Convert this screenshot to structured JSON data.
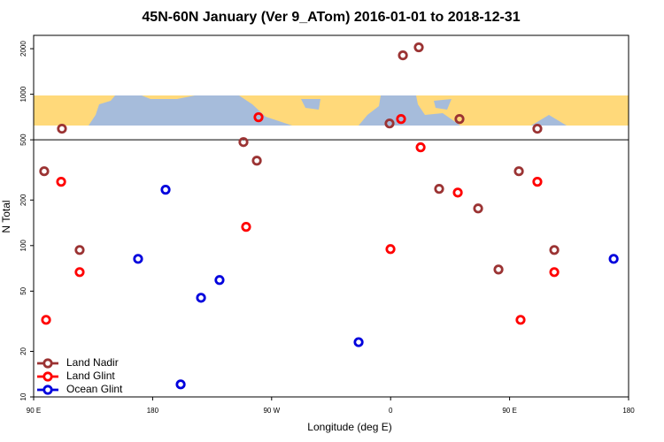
{
  "chart_data": {
    "type": "scatter",
    "title": "45N-60N January (Ver 9_ATom)   2016-01-01 to 2018-12-31",
    "x_label": "Longitude (deg E)",
    "y_label": "N Total",
    "xlim": [
      90,
      540
    ],
    "ylim": [
      10,
      2450
    ],
    "log_y": true,
    "hline": 500,
    "legend": "lower left",
    "xticks": [
      {
        "value": 90,
        "label": "90 E"
      },
      180,
      {
        "value": 270,
        "label": "90 W"
      },
      {
        "value": 360,
        "label": "0"
      },
      {
        "value": 450,
        "label": "90 E"
      },
      {
        "value": 540,
        "label": "180"
      }
    ],
    "yticks": [
      10,
      20,
      50,
      100,
      200,
      500,
      1000,
      2000
    ],
    "series": [
      {
        "name": "Land Nadir",
        "color": "#9b3333",
        "x": [
          98.0,
          111.4,
          124.8,
          248.7,
          258.8,
          359.2,
          369.3,
          381.3,
          396.7,
          412.1,
          426.2,
          441.6,
          457.0,
          471.0,
          483.8
        ],
        "values": [
          310,
          592,
          93.5,
          483,
          364,
          641,
          1808,
          2042,
          237,
          686,
          176,
          69.5,
          310,
          592,
          93.5
        ]
      },
      {
        "name": "Land Glint",
        "color": "#ff0000",
        "x": [
          99.4,
          110.8,
          124.8,
          250.7,
          260.1,
          359.9,
          367.9,
          382.7,
          410.8,
          458.3,
          471.0,
          483.8
        ],
        "values": [
          32.3,
          264,
          66.8,
          133,
          705,
          94.8,
          686,
          446,
          224,
          32.3,
          264,
          66.8
        ]
      },
      {
        "name": "Ocean Glint",
        "color": "#0000dd",
        "x": [
          189.8,
          169.0,
          230.6,
          216.6,
          201.2,
          335.8,
          528.7
        ],
        "values": [
          234,
          81.7,
          59.2,
          45.2,
          12.1,
          23.0,
          81.7
        ]
      }
    ]
  }
}
